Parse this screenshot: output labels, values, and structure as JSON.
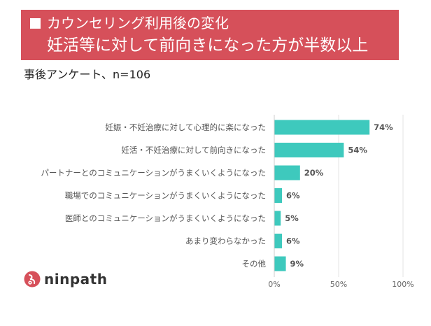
{
  "header": {
    "line1": "カウンセリング利用後の変化",
    "line2": "妊活等に対して前向きになった方が半数以上"
  },
  "subtitle": "事後アンケート、n=106",
  "logo": {
    "text": "ninpath"
  },
  "colors": {
    "banner": "#d6505a",
    "bar": "#3ec9bd",
    "logo_mark": "#d6505a"
  },
  "chart_data": {
    "type": "bar",
    "orientation": "horizontal",
    "categories": [
      "妊娠・不妊治療に対して心理的に楽になった",
      "妊活・不妊治療に対して前向きになった",
      "パートナーとのコミュニケーションがうまくいくようになった",
      "職場でのコミュニケーションがうまくいくようになった",
      "医師とのコミュニケーションがうまくいくようになった",
      "あまり変わらなかった",
      "その他"
    ],
    "values": [
      74,
      54,
      20,
      6,
      5,
      6,
      9
    ],
    "value_labels": [
      "74%",
      "54%",
      "20%",
      "6%",
      "5%",
      "6%",
      "9%"
    ],
    "xlim": [
      0,
      100
    ],
    "x_ticks": [
      0,
      50,
      100
    ],
    "x_tick_labels": [
      "0%",
      "50%",
      "100%"
    ],
    "grid": true,
    "legend": "none"
  }
}
